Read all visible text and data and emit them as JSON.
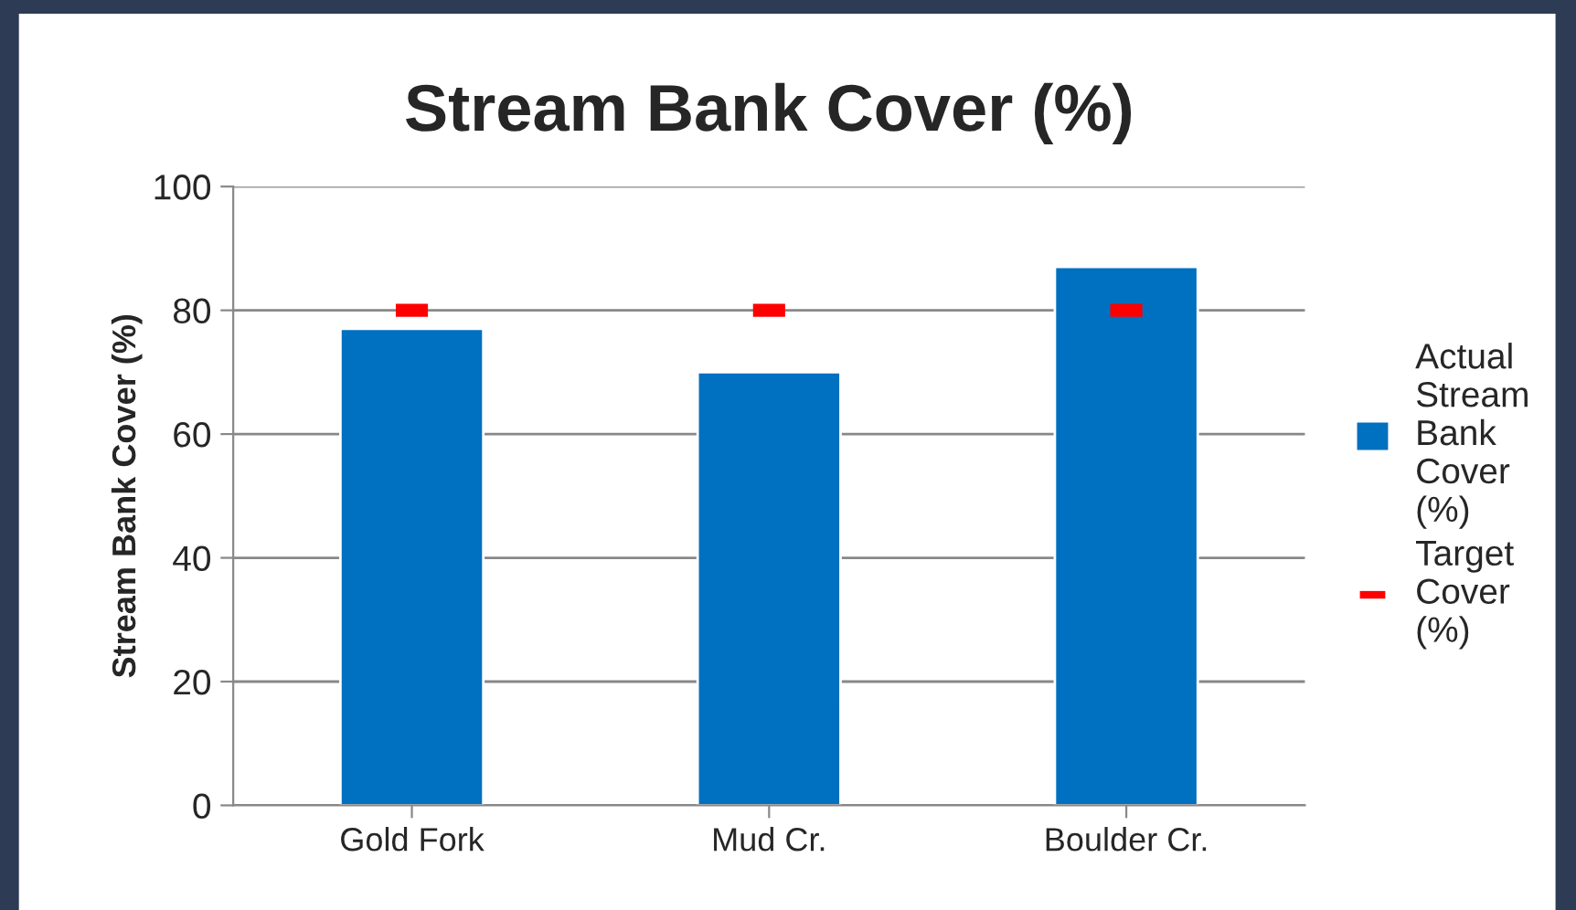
{
  "chart_data": {
    "type": "bar",
    "title": "Stream Bank Cover (%)",
    "ylabel": "Stream Bank Cover (%)",
    "categories": [
      "Gold Fork",
      "Mud Cr.",
      "Boulder Cr."
    ],
    "series": [
      {
        "name": "Actual Stream Bank Cover (%)",
        "color": "#0070c0",
        "values": [
          77,
          70,
          87
        ]
      },
      {
        "name": "Target Cover (%)",
        "type": "scatter",
        "color": "#ff0000",
        "values": [
          80,
          80,
          80
        ]
      }
    ],
    "ylim": [
      0,
      100
    ],
    "yticks": [
      0,
      20,
      40,
      60,
      80,
      100
    ],
    "grid": "y",
    "legend": "right"
  }
}
